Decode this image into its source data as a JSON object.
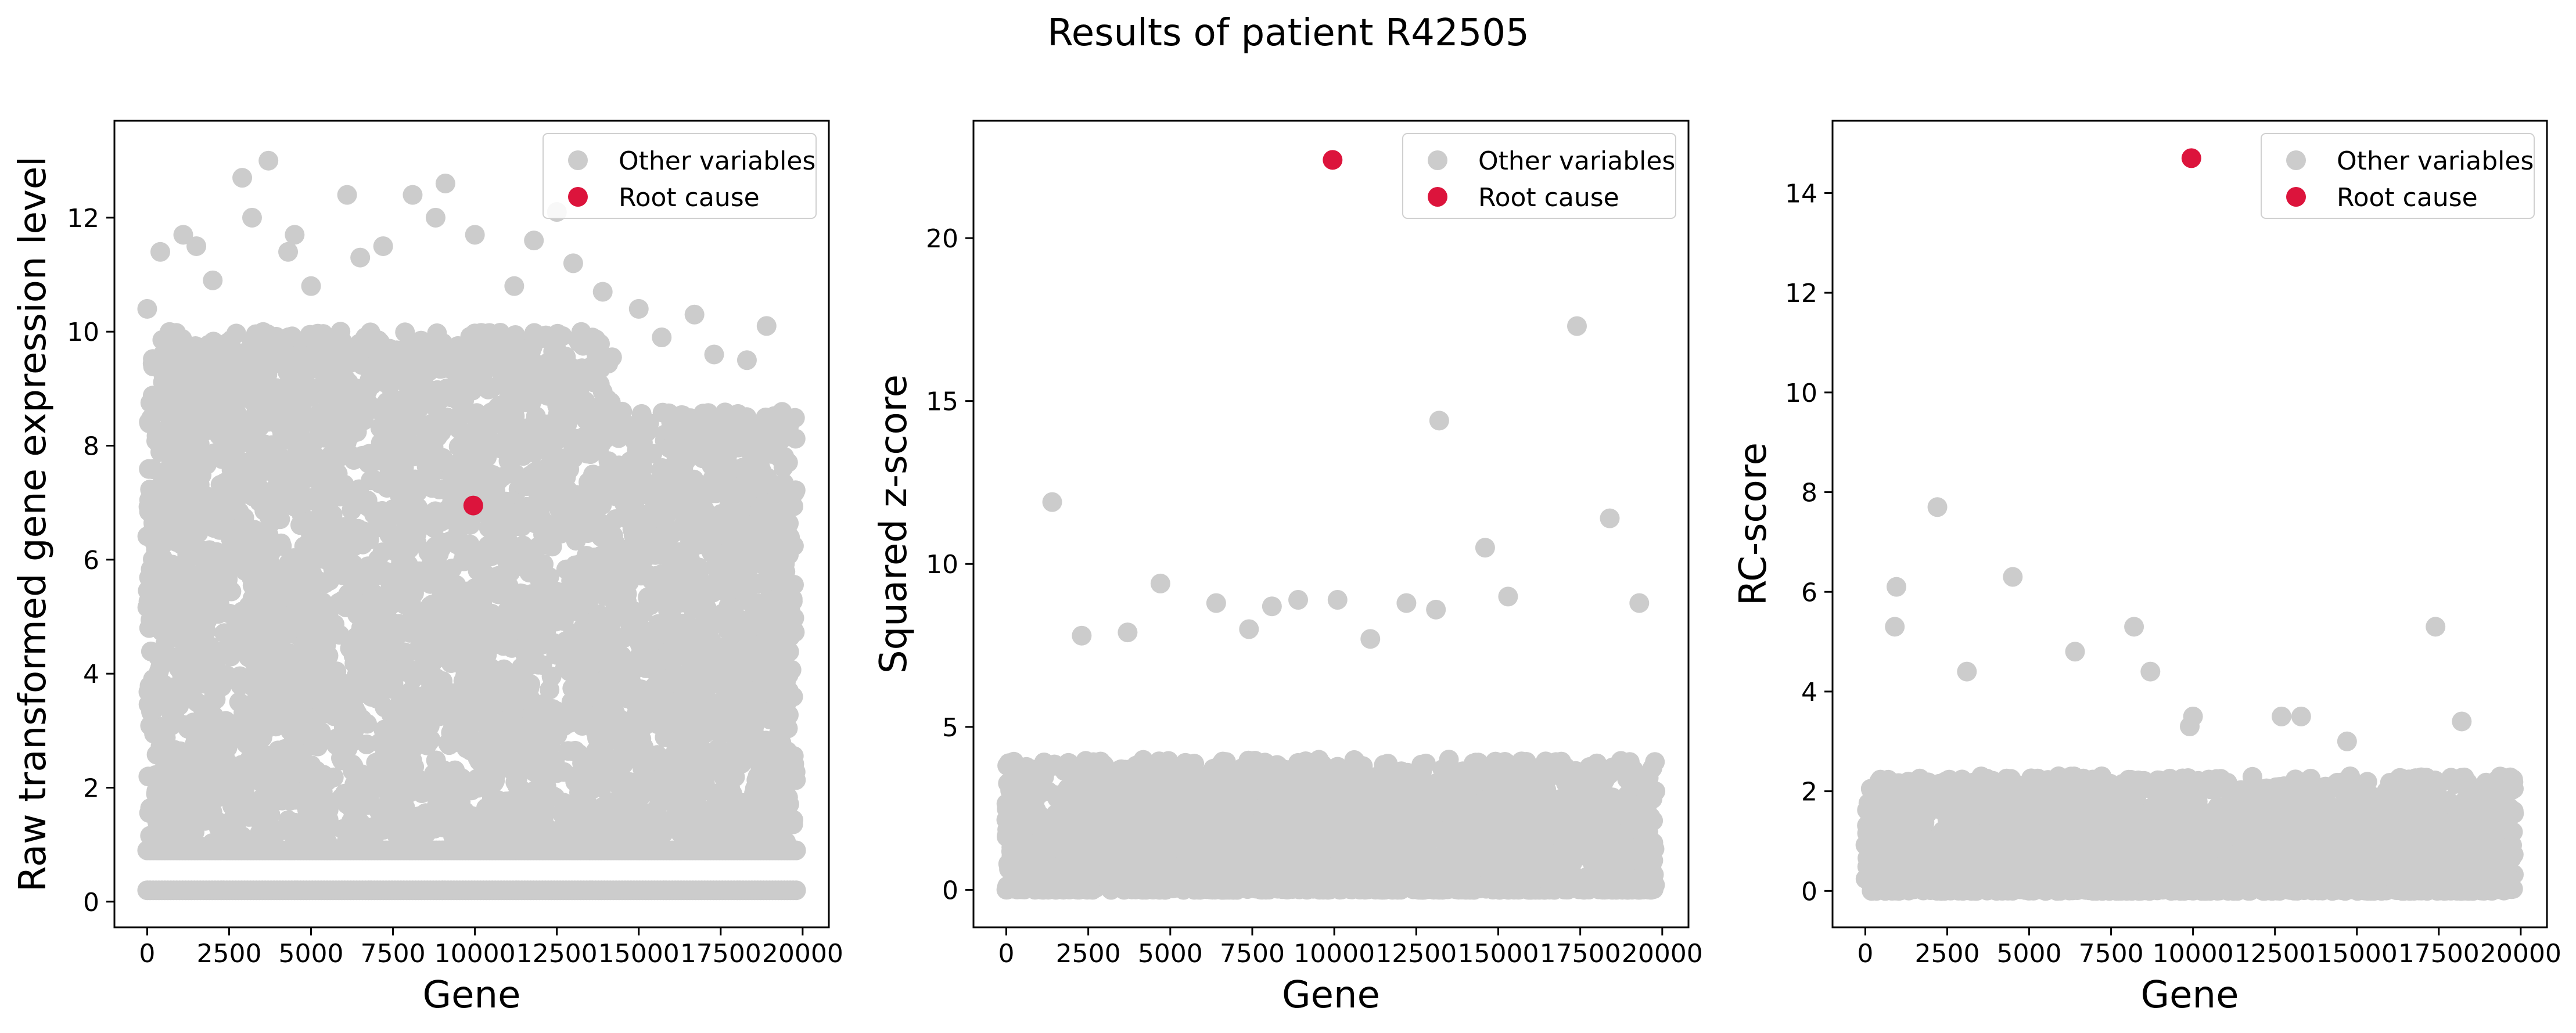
{
  "figure": {
    "title": "Results of patient R42505"
  },
  "colors": {
    "other": "#cccccc",
    "root": "#dc143c",
    "axes": "#000000"
  },
  "chart_data": [
    {
      "type": "scatter",
      "id": "raw",
      "title": "",
      "xlabel": "Gene",
      "ylabel": "Raw transformed gene expression level",
      "xlim": [
        -1000,
        20800
      ],
      "ylim": [
        -0.45,
        13.7
      ],
      "xticks": [
        0,
        2500,
        5000,
        7500,
        10000,
        12500,
        15000,
        17500,
        20000
      ],
      "xtick_labels": [
        "0",
        "2500",
        "5000",
        "7500",
        "10000",
        "12500",
        "15000",
        "17500",
        "20000"
      ],
      "yticks": [
        0,
        2,
        4,
        6,
        8,
        10,
        12
      ],
      "ytick_labels": [
        "0",
        "2",
        "4",
        "6",
        "8",
        "10",
        "12"
      ],
      "legend": {
        "position": "top-right",
        "entries": [
          "Other variables",
          "Root cause"
        ]
      },
      "series": [
        {
          "name": "Other variables",
          "x": [
            0,
            400,
            1100,
            1500,
            2000,
            2900,
            3200,
            3700,
            4300,
            4500,
            5000,
            6100,
            6500,
            7200,
            8100,
            8800,
            9100,
            10000,
            11200,
            11800,
            12500,
            13000,
            13900,
            15000,
            15700,
            16700,
            17300,
            18300,
            18900
          ],
          "y": [
            10.4,
            11.4,
            11.7,
            11.5,
            10.9,
            12.7,
            12.0,
            13.0,
            11.4,
            11.7,
            10.8,
            12.4,
            11.3,
            11.5,
            12.4,
            12.0,
            12.6,
            11.7,
            10.8,
            11.6,
            12.1,
            11.2,
            10.7,
            10.4,
            9.9,
            10.3,
            9.6,
            9.5,
            10.1
          ]
        },
        {
          "name": "Root cause",
          "x": [
            9950
          ],
          "y": [
            6.95
          ]
        }
      ],
      "band": {
        "ymin": 1.0,
        "ymax": 10.0
      },
      "floors": [
        0.2,
        0.9
      ]
    },
    {
      "type": "scatter",
      "id": "z",
      "title": "",
      "xlabel": "Gene",
      "ylabel": "Squared z-score",
      "xlim": [
        -1000,
        20800
      ],
      "ylim": [
        -1.15,
        23.6
      ],
      "xticks": [
        0,
        2500,
        5000,
        7500,
        10000,
        12500,
        15000,
        17500,
        20000
      ],
      "xtick_labels": [
        "0",
        "2500",
        "5000",
        "7500",
        "10000",
        "12500",
        "15000",
        "17500",
        "20000"
      ],
      "yticks": [
        0,
        5,
        10,
        15,
        20
      ],
      "ytick_labels": [
        "0",
        "5",
        "10",
        "15",
        "20"
      ],
      "legend": {
        "position": "top-right",
        "entries": [
          "Other variables",
          "Root cause"
        ]
      },
      "series": [
        {
          "name": "Other variables",
          "x": [
            1400,
            2300,
            3700,
            4700,
            6400,
            7400,
            8100,
            8900,
            10100,
            11100,
            12200,
            13100,
            13200,
            14600,
            15300,
            17400,
            18400,
            19300
          ],
          "y": [
            11.9,
            7.8,
            7.9,
            9.4,
            8.8,
            8.0,
            8.7,
            8.9,
            8.9,
            7.7,
            8.8,
            8.6,
            14.4,
            10.5,
            9.0,
            17.3,
            11.4,
            8.8
          ]
        },
        {
          "name": "Root cause",
          "x": [
            9950
          ],
          "y": [
            22.4
          ]
        }
      ],
      "band": {
        "ymin": 0.0,
        "ymax": 4.0
      }
    },
    {
      "type": "scatter",
      "id": "rc",
      "title": "",
      "xlabel": "Gene",
      "ylabel": "RC-score",
      "xlim": [
        -1000,
        20800
      ],
      "ylim": [
        -0.73,
        15.45
      ],
      "xticks": [
        0,
        2500,
        5000,
        7500,
        10000,
        12500,
        15000,
        17500,
        20000
      ],
      "xtick_labels": [
        "0",
        "2500",
        "5000",
        "7500",
        "10000",
        "12500",
        "15000",
        "17500",
        "20000"
      ],
      "yticks": [
        0,
        2,
        4,
        6,
        8,
        10,
        12,
        14
      ],
      "ytick_labels": [
        "0",
        "2",
        "4",
        "6",
        "8",
        "10",
        "12",
        "14"
      ],
      "legend": {
        "position": "top-right",
        "entries": [
          "Other variables",
          "Root cause"
        ]
      },
      "series": [
        {
          "name": "Other variables",
          "x": [
            900,
            950,
            2200,
            3100,
            4500,
            6400,
            8200,
            8700,
            9900,
            10000,
            12700,
            13300,
            14700,
            17400,
            18200
          ],
          "y": [
            5.3,
            6.1,
            7.7,
            4.4,
            6.3,
            4.8,
            5.3,
            4.4,
            3.3,
            3.5,
            3.5,
            3.5,
            3.0,
            5.3,
            3.4
          ]
        },
        {
          "name": "Root cause",
          "x": [
            9950
          ],
          "y": [
            14.7
          ]
        }
      ],
      "band": {
        "ymin": 0.0,
        "ymax": 2.3
      }
    }
  ]
}
